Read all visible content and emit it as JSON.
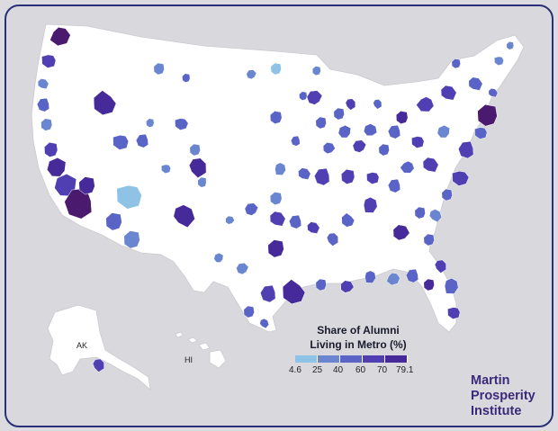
{
  "legend": {
    "title_line1": "Share of Alumni",
    "title_line2": "Living in Metro (%)",
    "ticks": [
      "4.6",
      "25",
      "40",
      "60",
      "70",
      "79.1"
    ],
    "colors": [
      "#8fc3e6",
      "#6a86d0",
      "#5a64c6",
      "#4f3fb3",
      "#462a9a",
      "#4a1a6e"
    ]
  },
  "labels": {
    "alaska": "AK",
    "hawaii": "HI"
  },
  "logo": {
    "line1": "Martin",
    "line2": "Prosperity",
    "line3": "Institute"
  },
  "colors": {
    "frame": "#2a2f7a",
    "background": "#d9d9dd",
    "land": "#ffffff",
    "logo": "#3b2a7a"
  }
}
